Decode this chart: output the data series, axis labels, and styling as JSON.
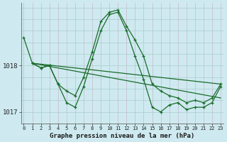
{
  "title": "Graphe pression niveau de la mer (hPa)",
  "bg_color": "#ceeaf0",
  "grid_color": "#aad4da",
  "vgrid_color": "#c0dde4",
  "line_color": "#1a6b2a",
  "x_ticks": [
    0,
    1,
    2,
    3,
    4,
    5,
    6,
    7,
    8,
    9,
    10,
    11,
    12,
    13,
    14,
    15,
    16,
    17,
    18,
    19,
    20,
    21,
    22,
    23
  ],
  "ylim": [
    1016.75,
    1019.35
  ],
  "yticks": [
    1017,
    1018
  ],
  "series": [
    {
      "x": [
        0,
        1,
        2,
        3,
        4,
        5,
        6,
        7,
        8,
        9,
        10,
        11,
        12,
        13,
        14,
        15,
        16,
        17,
        18,
        19,
        20,
        21,
        22,
        23
      ],
      "y": [
        1018.6,
        1018.05,
        1017.95,
        1018.0,
        1017.6,
        1017.45,
        1017.35,
        1017.75,
        1018.3,
        1018.95,
        1019.15,
        1019.2,
        1018.85,
        1018.55,
        1018.2,
        1017.6,
        1017.45,
        1017.35,
        1017.3,
        1017.2,
        1017.25,
        1017.2,
        1017.3,
        1017.6
      ]
    },
    {
      "x": [
        1,
        2,
        3,
        4,
        5,
        6,
        7,
        8,
        9,
        10,
        11,
        12,
        13,
        14,
        15,
        16,
        17,
        18,
        19,
        20,
        21,
        22,
        23
      ],
      "y": [
        1018.05,
        1017.95,
        1018.0,
        1017.6,
        1017.2,
        1017.1,
        1017.55,
        1018.15,
        1018.75,
        1019.1,
        1019.15,
        1018.75,
        1018.2,
        1017.7,
        1017.1,
        1017.0,
        1017.15,
        1017.2,
        1017.05,
        1017.1,
        1017.1,
        1017.2,
        1017.55
      ]
    },
    {
      "x": [
        1,
        23
      ],
      "y": [
        1018.05,
        1017.6
      ]
    },
    {
      "x": [
        1,
        23
      ],
      "y": [
        1018.05,
        1017.3
      ]
    }
  ],
  "figsize": [
    3.2,
    2.0
  ],
  "dpi": 100
}
